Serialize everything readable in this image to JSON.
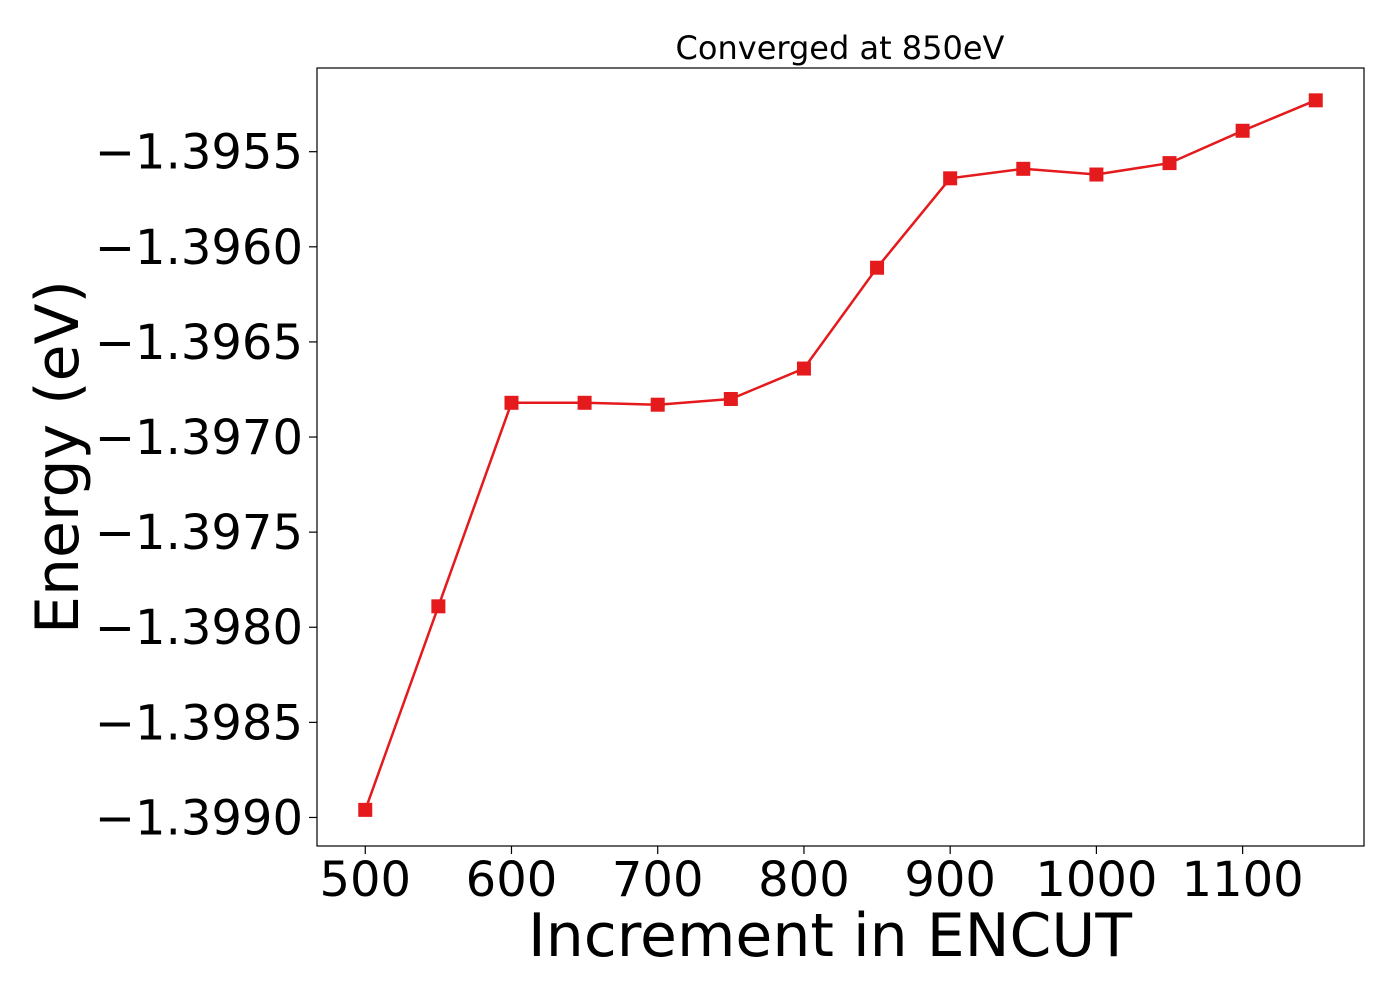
{
  "chart_data": {
    "type": "line",
    "title": "Converged at 850eV",
    "xlabel": "Increment in ENCUT",
    "ylabel": "Energy (eV)",
    "xlim": [
      467,
      1183
    ],
    "ylim": [
      -1.39915,
      -1.39506
    ],
    "xticks": [
      500,
      600,
      700,
      800,
      900,
      1000,
      1100
    ],
    "xtick_labels": [
      "500",
      "600",
      "700",
      "800",
      "900",
      "1000",
      "1100"
    ],
    "yticks": [
      -1.399,
      -1.3985,
      -1.398,
      -1.3975,
      -1.397,
      -1.3965,
      -1.396,
      -1.3955
    ],
    "ytick_labels": [
      "−1.3990",
      "−1.3985",
      "−1.3980",
      "−1.3975",
      "−1.3970",
      "−1.3965",
      "−1.3960",
      "−1.3955"
    ],
    "grid": false,
    "series": [
      {
        "color": "#e41a1c",
        "marker": "square",
        "x": [
          500,
          550,
          600,
          650,
          700,
          750,
          800,
          850,
          900,
          950,
          1000,
          1050,
          1100,
          1150
        ],
        "y": [
          -1.39896,
          -1.39789,
          -1.39682,
          -1.39682,
          -1.39683,
          -1.3968,
          -1.39664,
          -1.39611,
          -1.39564,
          -1.39559,
          -1.39562,
          -1.39556,
          -1.39539,
          -1.39523
        ]
      }
    ]
  }
}
